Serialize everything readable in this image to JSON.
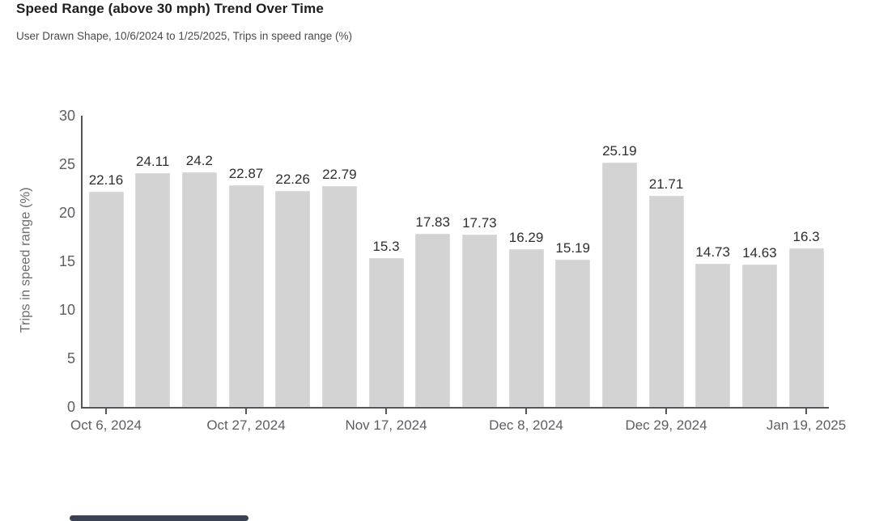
{
  "header": {
    "title": "Speed Range (above 30 mph) Trend Over Time",
    "subtitle": "User Drawn Shape, 10/6/2024 to 1/25/2025, Trips in speed range (%)"
  },
  "chart_data": {
    "type": "bar",
    "title": "Speed Range (above 30 mph) Trend Over Time",
    "subtitle": "User Drawn Shape, 10/6/2024 to 1/25/2025, Trips in speed range (%)",
    "values": [
      22.16,
      24.11,
      24.2,
      22.87,
      22.26,
      22.79,
      15.3,
      17.83,
      17.73,
      16.29,
      15.19,
      25.19,
      21.71,
      14.73,
      14.63,
      16.3
    ],
    "bar_labels": [
      "22.16",
      "24.11",
      "24.2",
      "22.87",
      "22.26",
      "22.79",
      "15.3",
      "17.83",
      "17.73",
      "16.29",
      "15.19",
      "25.19",
      "21.71",
      "14.73",
      "14.63",
      "16.3"
    ],
    "x_tick_labels": [
      "Oct 6, 2024",
      "Oct 27, 2024",
      "Nov 17, 2024",
      "Dec 8, 2024",
      "Dec 29, 2024",
      "Jan 19, 2025"
    ],
    "x_tick_every": 3,
    "xlabel": "",
    "ylabel": "Trips in speed range (%)",
    "ylim": [
      0,
      30
    ],
    "yticks": [
      0,
      5,
      10,
      15,
      20,
      25,
      30
    ],
    "grid": "off",
    "legend": "none",
    "bar_color": "#d3d3d4",
    "axis_color": "#55555c",
    "value_label_color": "#2e2e2e",
    "tick_label_color": "#5d5d64"
  },
  "scrollbar": {
    "orientation": "horizontal",
    "thumb_color": "#3a4152"
  }
}
